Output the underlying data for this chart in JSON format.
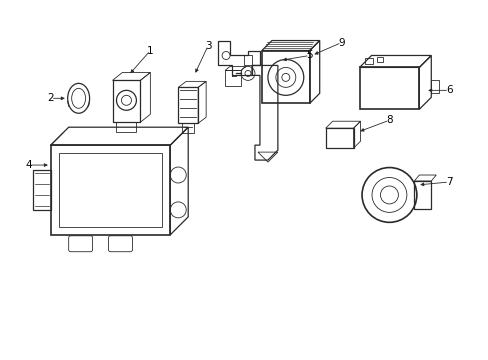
{
  "bg_color": "#ffffff",
  "line_color": "#2a2a2a",
  "label_color": "#000000",
  "fig_width": 4.89,
  "fig_height": 3.6,
  "dpi": 100,
  "label_fontsize": 7.5,
  "lw_thin": 0.6,
  "lw_med": 0.9,
  "lw_thick": 1.2,
  "components": {
    "comp1_label": "1",
    "comp2_label": "2",
    "comp3_label": "3",
    "comp4_label": "4",
    "comp5_label": "5",
    "comp6_label": "6",
    "comp7_label": "7",
    "comp8_label": "8",
    "comp9_label": "9"
  }
}
